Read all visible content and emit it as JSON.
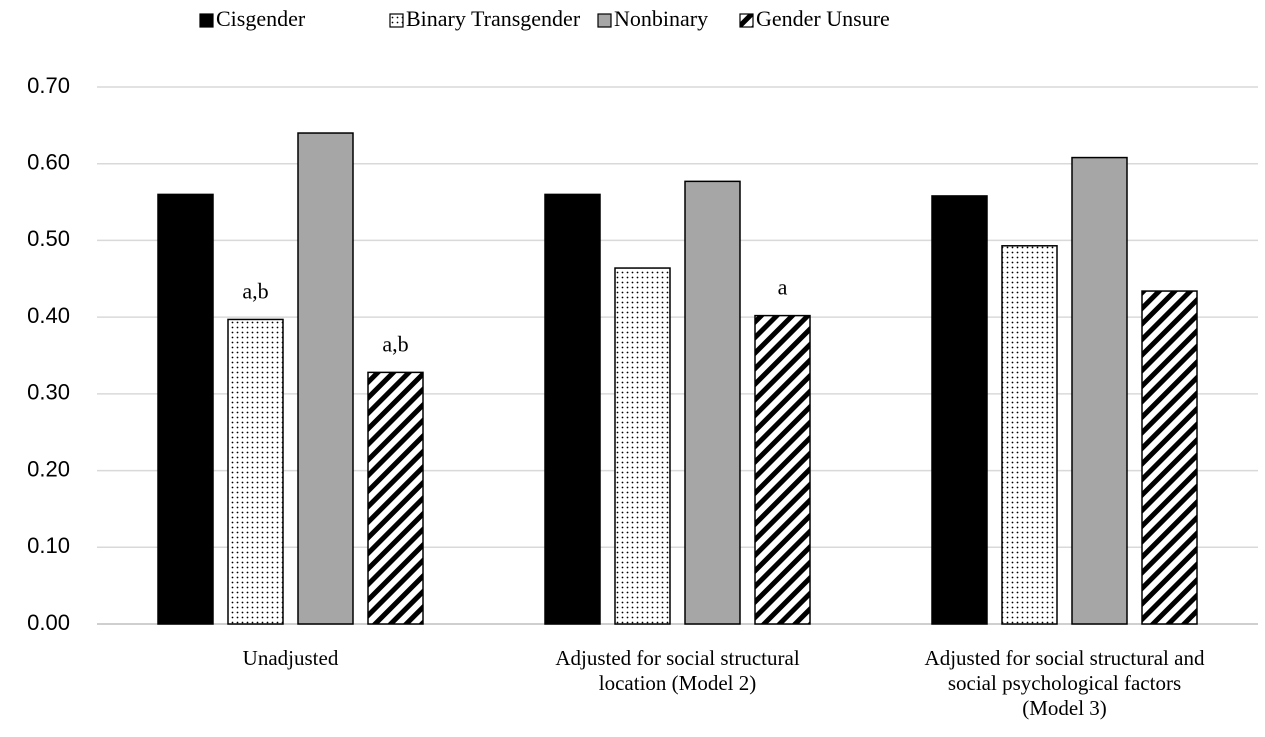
{
  "chart_data": {
    "type": "bar",
    "categories": [
      "Unadjusted",
      "Adjusted for social structural\nlocation  (Model 2)",
      "Adjusted for social structural and\nsocial psychological factors\n(Model 3)"
    ],
    "series": [
      {
        "name": "Cisgender",
        "color": "#000000",
        "pattern": "solid",
        "values": [
          0.56,
          0.56,
          0.558
        ]
      },
      {
        "name": "Binary Transgender",
        "color": "#000000",
        "pattern": "dots",
        "values": [
          0.397,
          0.464,
          0.493
        ],
        "annotations": [
          "a,b",
          null,
          null
        ]
      },
      {
        "name": "Nonbinary",
        "color": "#a6a6a6",
        "pattern": "solid",
        "values": [
          0.64,
          0.577,
          0.608
        ]
      },
      {
        "name": "Gender Unsure",
        "color": "#000000",
        "pattern": "hatch",
        "values": [
          0.328,
          0.402,
          0.434
        ],
        "annotations": [
          "a,b",
          "a",
          null
        ]
      }
    ],
    "ylim": [
      0,
      0.7
    ],
    "yticks": [
      {
        "value": 0,
        "label": "0.00"
      },
      {
        "value": 0.1,
        "label": "0.10"
      },
      {
        "value": 0.2,
        "label": "0.20"
      },
      {
        "value": 0.3,
        "label": "0.30"
      },
      {
        "value": 0.4,
        "label": "0.40"
      },
      {
        "value": 0.5,
        "label": "0.50"
      },
      {
        "value": 0.6,
        "label": "0.60"
      },
      {
        "value": 0.7,
        "label": "0.70"
      }
    ],
    "grid": true,
    "legend": "top"
  }
}
